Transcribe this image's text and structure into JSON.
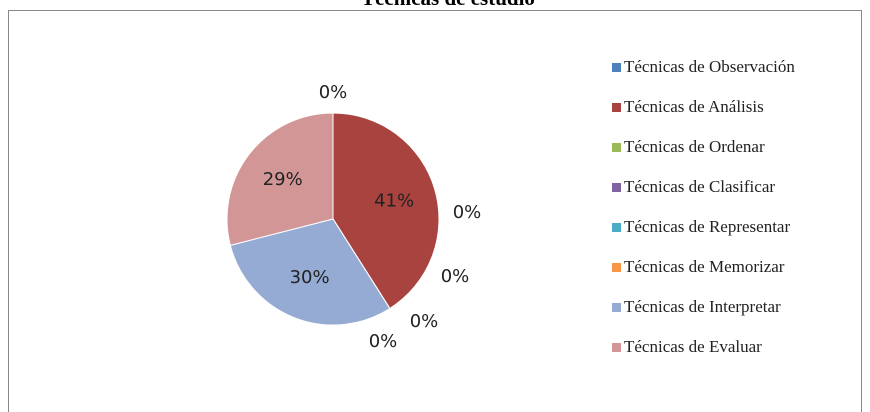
{
  "chart_data": {
    "type": "pie",
    "title": "Técnicas de estudio",
    "categories": [
      "Técnicas de Observación",
      "Técnicas de Análisis",
      "Técnicas de Ordenar",
      "Técnicas de Clasificar",
      "Técnicas de Representar",
      "Técnicas de Memorizar",
      "Técnicas de Interpretar",
      "Técnicas de Evaluar"
    ],
    "values": [
      0,
      41,
      0,
      0,
      0,
      0,
      30,
      29
    ],
    "value_labels": [
      "0%",
      "41%",
      "0%",
      "0%",
      "0%",
      "0%",
      "30%",
      "29%"
    ],
    "colors": [
      "#4f81bd",
      "#a9433f",
      "#9bbb59",
      "#8064a2",
      "#4bacc6",
      "#f79646",
      "#95abd3",
      "#d39696"
    ],
    "legend": "right"
  }
}
